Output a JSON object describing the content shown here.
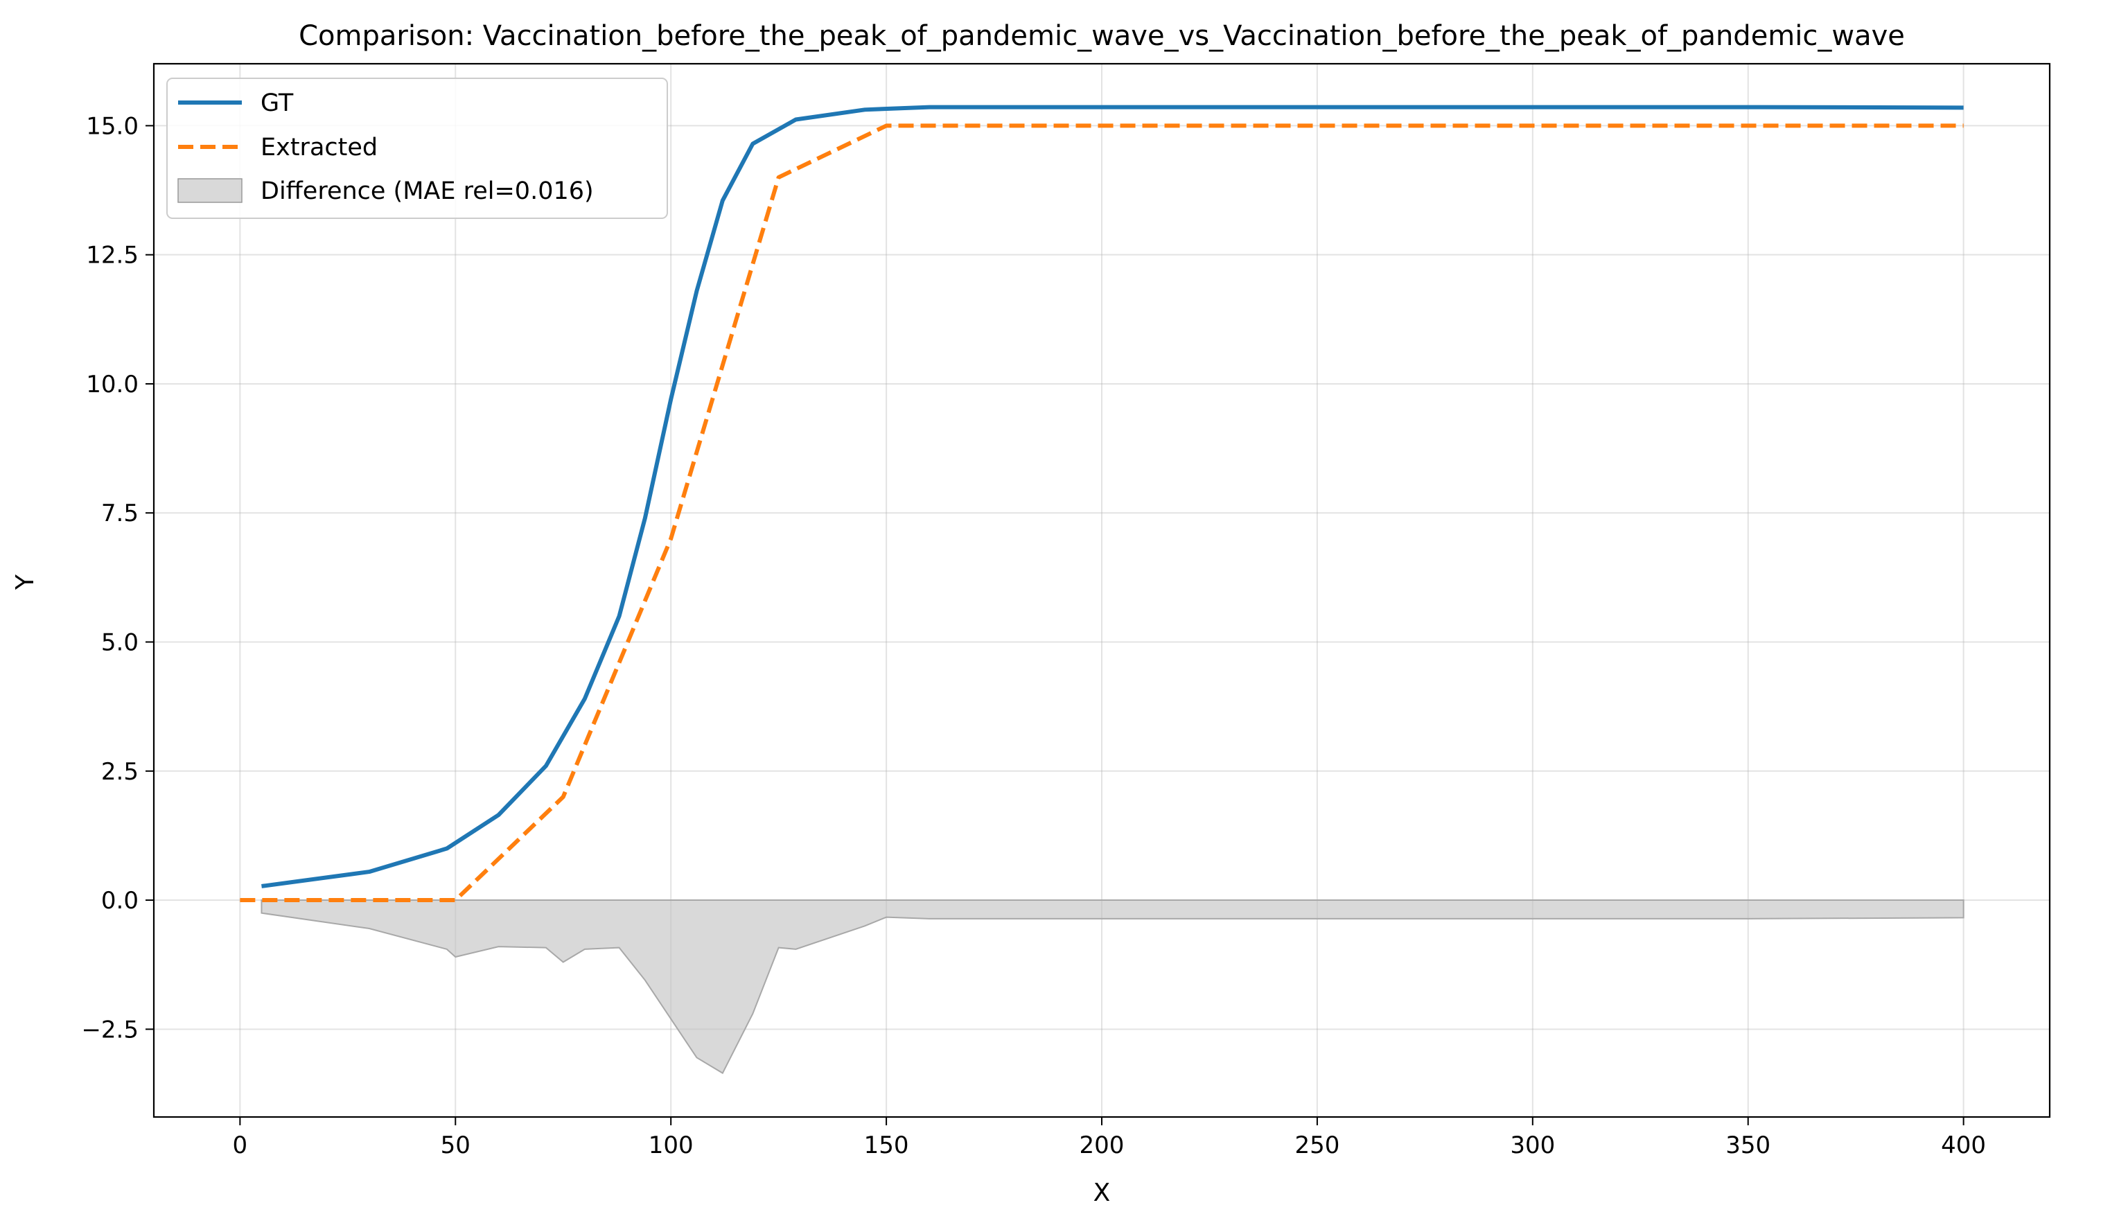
{
  "chart_data": {
    "type": "line",
    "title": "Comparison: Vaccination_before_the_peak_of_pandemic_wave_vs_Vaccination_before_the_peak_of_pandemic_wave",
    "xlabel": "X",
    "ylabel": "Y",
    "xlim": [
      -20,
      420
    ],
    "ylim": [
      -4.2,
      16.2
    ],
    "xticks": [
      0,
      50,
      100,
      150,
      200,
      250,
      300,
      350,
      400
    ],
    "yticks": [
      -2.5,
      0.0,
      2.5,
      5.0,
      7.5,
      10.0,
      12.5,
      15.0
    ],
    "ytick_labels": [
      "−2.5",
      "0.0",
      "2.5",
      "5.0",
      "7.5",
      "10.0",
      "12.5",
      "15.0"
    ],
    "grid": true,
    "legend_position": "top-left",
    "series": [
      {
        "name": "GT",
        "color": "#1f77b4",
        "style": "solid",
        "points": [
          [
            5,
            0.27
          ],
          [
            30,
            0.55
          ],
          [
            48,
            1.0
          ],
          [
            60,
            1.65
          ],
          [
            71,
            2.6
          ],
          [
            80,
            3.9
          ],
          [
            88,
            5.5
          ],
          [
            94,
            7.4
          ],
          [
            100,
            9.7
          ],
          [
            106,
            11.8
          ],
          [
            112,
            13.55
          ],
          [
            119,
            14.65
          ],
          [
            129,
            15.12
          ],
          [
            145,
            15.31
          ],
          [
            160,
            15.36
          ],
          [
            200,
            15.36
          ],
          [
            250,
            15.36
          ],
          [
            300,
            15.36
          ],
          [
            350,
            15.36
          ],
          [
            400,
            15.35
          ]
        ]
      },
      {
        "name": "Extracted",
        "color": "#ff7f0e",
        "style": "dashed",
        "points": [
          [
            0,
            0.0
          ],
          [
            50,
            0.0
          ],
          [
            75,
            2.0
          ],
          [
            100,
            7.0
          ],
          [
            125,
            14.0
          ],
          [
            150,
            15.0
          ],
          [
            400,
            15.0
          ]
        ]
      }
    ],
    "difference": {
      "name": "Difference (MAE rel=0.016)",
      "color": "#bfbfbf",
      "points": [
        [
          5,
          -0.25
        ],
        [
          30,
          -0.55
        ],
        [
          48,
          -0.95
        ],
        [
          50,
          -1.1
        ],
        [
          60,
          -0.9
        ],
        [
          71,
          -0.92
        ],
        [
          75,
          -1.2
        ],
        [
          80,
          -0.95
        ],
        [
          88,
          -0.92
        ],
        [
          94,
          -1.55
        ],
        [
          100,
          -2.3
        ],
        [
          106,
          -3.05
        ],
        [
          112,
          -3.35
        ],
        [
          119,
          -2.2
        ],
        [
          125,
          -0.92
        ],
        [
          129,
          -0.95
        ],
        [
          145,
          -0.5
        ],
        [
          150,
          -0.33
        ],
        [
          160,
          -0.36
        ],
        [
          200,
          -0.36
        ],
        [
          250,
          -0.36
        ],
        [
          300,
          -0.36
        ],
        [
          350,
          -0.36
        ],
        [
          400,
          -0.34
        ]
      ]
    }
  }
}
